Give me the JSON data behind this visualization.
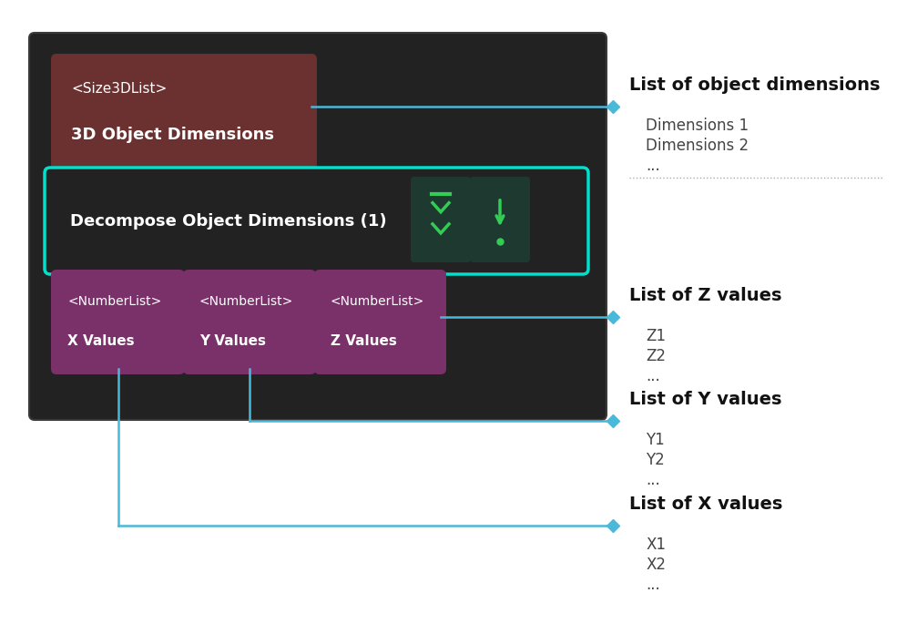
{
  "bg_color": "#ffffff",
  "outer_box_color": "#222222",
  "outer_box_border": "#3a3a3a",
  "input_box_color": "#6b3030",
  "input_box_text_line1": "<Size3DList>",
  "input_box_text_line2": "3D Object Dimensions",
  "node_box_border": "#00e0cc",
  "node_box_bg": "#1e2a28",
  "node_label": "Decompose Object Dimensions (1)",
  "icon1_bg": "#1e3a30",
  "icon2_bg": "#1e3a30",
  "output_box_color": "#7a3068",
  "output_boxes": [
    {
      "line1": "<NumberList>",
      "line2": "X Values"
    },
    {
      "line1": "<NumberList>",
      "line2": "Y Values"
    },
    {
      "line1": "<NumberList>",
      "line2": "Z Values"
    }
  ],
  "connector_color": "#4ab8d8",
  "label_fontsize": 14,
  "sub_fontsize": 12,
  "label_color": "#111111",
  "sub_color": "#444444"
}
